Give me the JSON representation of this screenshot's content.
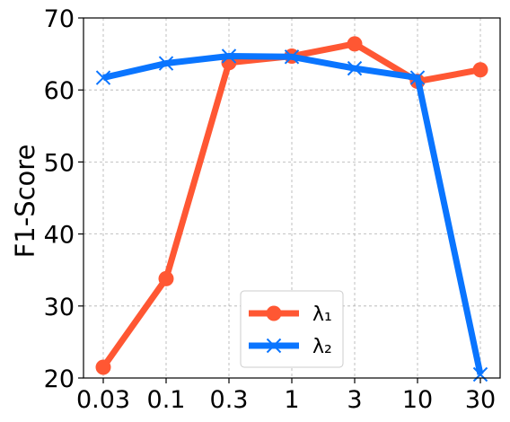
{
  "chart_data": {
    "type": "line",
    "categories": [
      "0.03",
      "0.1",
      "0.3",
      "1",
      "3",
      "10",
      "30"
    ],
    "series": [
      {
        "name": "λ₁",
        "values": [
          21.5,
          33.8,
          63.8,
          64.7,
          66.4,
          61.2,
          62.8
        ],
        "color": "#ff5733",
        "marker": "circle"
      },
      {
        "name": "λ₂",
        "values": [
          61.7,
          63.7,
          64.7,
          64.6,
          63.0,
          61.7,
          20.5
        ],
        "color": "#0a75ff",
        "marker": "x"
      }
    ],
    "title": "",
    "xlabel": "",
    "ylabel": "F1-Score",
    "ylim": [
      20,
      70
    ],
    "yticks": [
      "20",
      "30",
      "40",
      "50",
      "60",
      "70"
    ],
    "grid": true,
    "legend_position": "bottom-center"
  }
}
